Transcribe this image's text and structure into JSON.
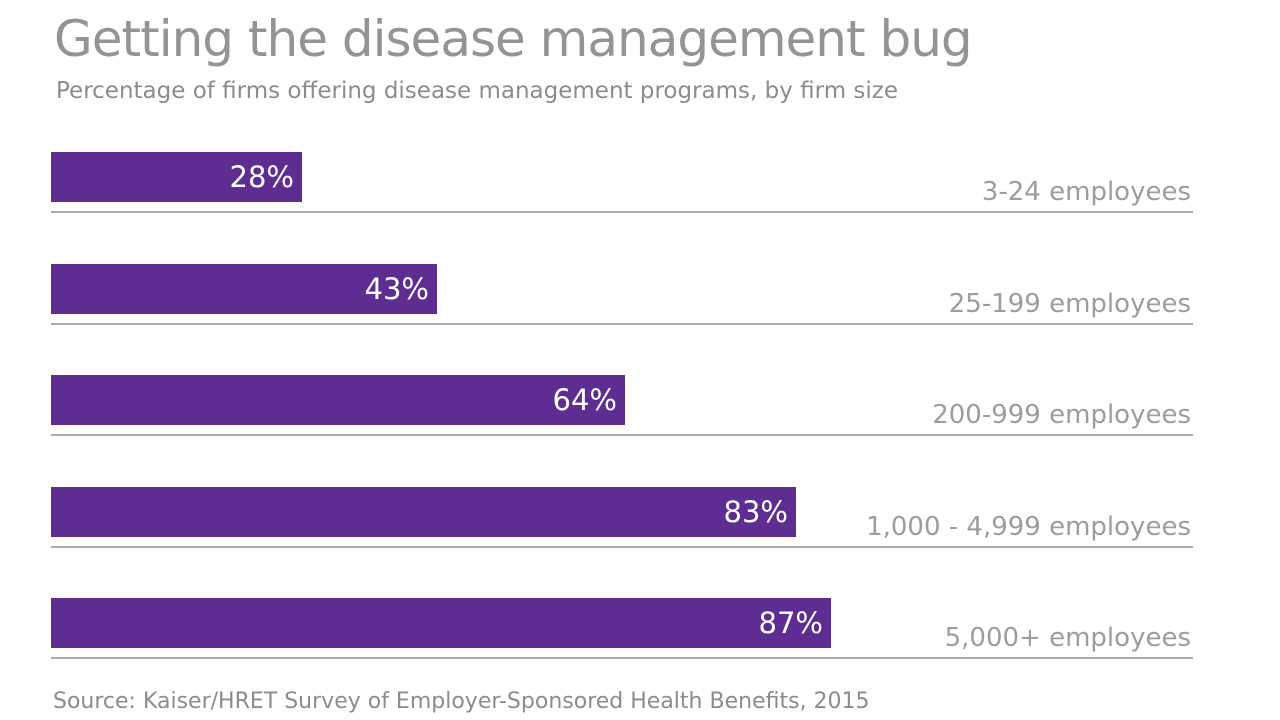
{
  "chart_data": {
    "type": "bar",
    "orientation": "horizontal",
    "title": "Getting the disease management bug",
    "subtitle": "Percentage of firms offering disease management programs, by firm size",
    "source": "Source: Kaiser/HRET Survey of Employer-Sponsored Health Benefits, 2015",
    "categories": [
      "3-24 employees",
      "25-199 employees",
      "200-999 employees",
      "1,000 - 4,999 employees",
      "5,000+ employees"
    ],
    "values": [
      28,
      43,
      64,
      83,
      87
    ],
    "value_labels": [
      "28%",
      "43%",
      "64%",
      "83%",
      "87%"
    ],
    "xlim": [
      0,
      100
    ],
    "grid": "per-row horizontal baselines",
    "legend": "none",
    "colors": {
      "bar": "#5E2D91",
      "value_label": "#FFFFFF",
      "title_text": "#949494",
      "subtitle_text": "#8C8C8C",
      "category_text": "#9D9D9D",
      "source_text": "#8C8C8C",
      "baseline": "#ABABAB",
      "background": "#FFFFFF"
    }
  }
}
